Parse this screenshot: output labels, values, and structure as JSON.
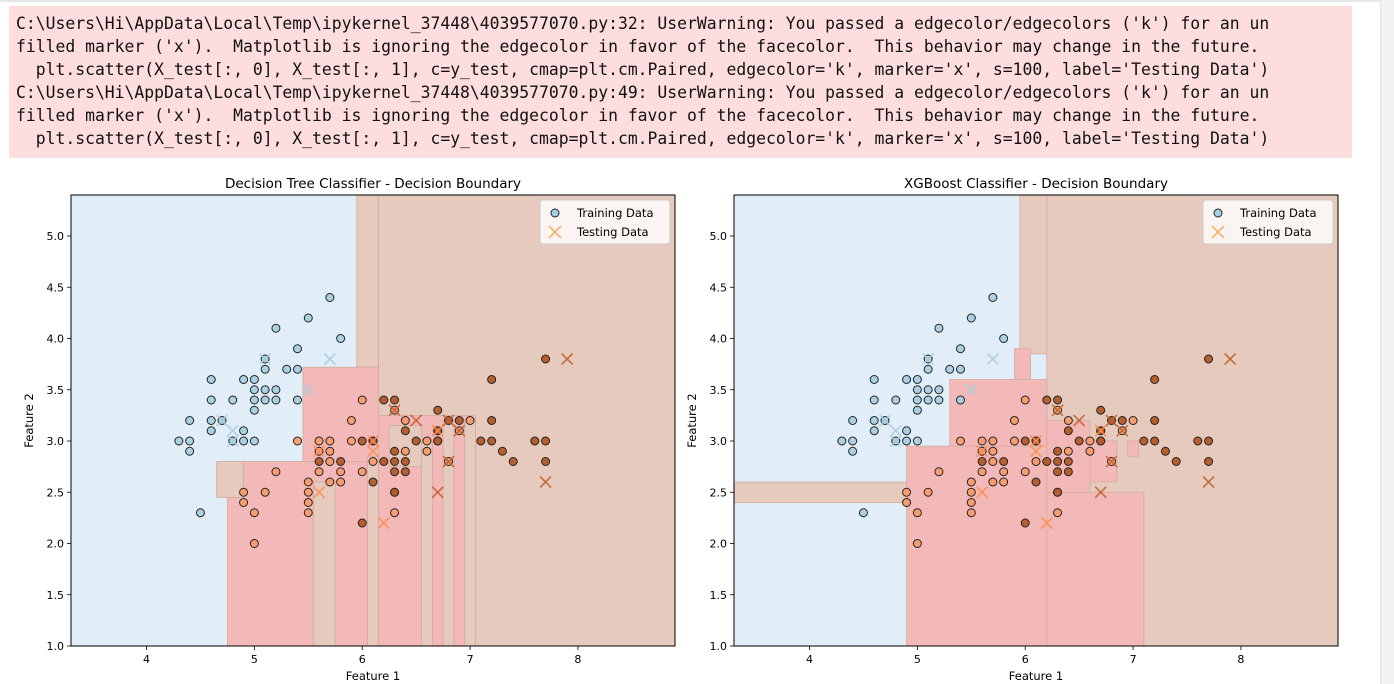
{
  "warnings": [
    "C:\\Users\\Hi\\AppData\\Local\\Temp\\ipykernel_37448\\4039577070.py:32: UserWarning: You passed a edgecolor/edgecolors ('k') for an un",
    "filled marker ('x').  Matplotlib is ignoring the edgecolor in favor of the facecolor.  This behavior may change in the future.",
    "  plt.scatter(X_test[:, 0], X_test[:, 1], c=y_test, cmap=plt.cm.Paired, edgecolor='k', marker='x', s=100, label='Testing Data')",
    "C:\\Users\\Hi\\AppData\\Local\\Temp\\ipykernel_37448\\4039577070.py:49: UserWarning: You passed a edgecolor/edgecolors ('k') for an un",
    "filled marker ('x').  Matplotlib is ignoring the edgecolor in favor of the facecolor.  This behavior may change in the future.",
    "  plt.scatter(X_test[:, 0], X_test[:, 1], c=y_test, cmap=plt.cm.Paired, edgecolor='k', marker='x', s=100, label='Testing Data')"
  ],
  "colors": {
    "warning_bg": "#fddddd",
    "region_class0": "#e2eef7",
    "region_class1": "#f3b8b8",
    "region_class2": "#e5cabd",
    "point_class0": "#a6cee3",
    "point_class1": "#fb9a6c",
    "point_class2": "#b15928",
    "test_class0": "#a6cee3",
    "test_class1": "#fb8c4c",
    "test_class2": "#c0602e"
  },
  "chart_data": [
    {
      "type": "scatter",
      "title": "Decision Tree Classifier - Decision Boundary",
      "xlabel": "Feature 1",
      "ylabel": "Feature 2",
      "xlim": [
        3.3,
        8.9
      ],
      "ylim": [
        1.0,
        5.4
      ],
      "xticks": [
        4,
        5,
        6,
        7,
        8
      ],
      "yticks": [
        1.0,
        1.5,
        2.0,
        2.5,
        3.0,
        3.5,
        4.0,
        4.5,
        5.0
      ],
      "legend": {
        "position": "top-right",
        "entries": [
          "Training Data",
          "Testing Data"
        ]
      },
      "regions": [
        {
          "class": 0,
          "x": [
            3.3,
            8.9
          ],
          "y": [
            1.0,
            5.4
          ]
        },
        {
          "class": 2,
          "x": [
            6.15,
            8.9
          ],
          "y": [
            1.0,
            5.4
          ]
        },
        {
          "class": 2,
          "x": [
            5.95,
            6.15
          ],
          "y": [
            3.72,
            5.4
          ]
        },
        {
          "class": 1,
          "x": [
            4.75,
            6.15
          ],
          "y": [
            1.0,
            2.8
          ]
        },
        {
          "class": 2,
          "x": [
            4.65,
            4.9
          ],
          "y": [
            2.45,
            2.8
          ]
        },
        {
          "class": 1,
          "x": [
            5.45,
            6.15
          ],
          "y": [
            2.8,
            3.72
          ]
        },
        {
          "class": 1,
          "x": [
            6.15,
            7.05
          ],
          "y": [
            1.0,
            3.25
          ]
        },
        {
          "class": 2,
          "x": [
            5.55,
            5.75
          ],
          "y": [
            1.0,
            2.6
          ]
        },
        {
          "class": 2,
          "x": [
            6.05,
            6.15
          ],
          "y": [
            1.0,
            2.85
          ]
        },
        {
          "class": 2,
          "x": [
            6.55,
            6.65
          ],
          "y": [
            1.0,
            3.0
          ]
        },
        {
          "class": 2,
          "x": [
            6.75,
            6.85
          ],
          "y": [
            1.0,
            3.2
          ]
        },
        {
          "class": 2,
          "x": [
            6.95,
            7.05
          ],
          "y": [
            1.0,
            3.2
          ]
        },
        {
          "class": 2,
          "x": [
            6.25,
            6.55
          ],
          "y": [
            2.75,
            3.15
          ]
        }
      ],
      "train": [
        {
          "x": 4.3,
          "y": 3.0,
          "c": 0
        },
        {
          "x": 4.4,
          "y": 3.0,
          "c": 0
        },
        {
          "x": 4.4,
          "y": 2.9,
          "c": 0
        },
        {
          "x": 4.4,
          "y": 3.2,
          "c": 0
        },
        {
          "x": 4.5,
          "y": 2.3,
          "c": 0
        },
        {
          "x": 4.6,
          "y": 3.1,
          "c": 0
        },
        {
          "x": 4.6,
          "y": 3.2,
          "c": 0
        },
        {
          "x": 4.6,
          "y": 3.4,
          "c": 0
        },
        {
          "x": 4.6,
          "y": 3.6,
          "c": 0
        },
        {
          "x": 4.7,
          "y": 3.2,
          "c": 0
        },
        {
          "x": 4.8,
          "y": 3.0,
          "c": 0
        },
        {
          "x": 4.8,
          "y": 3.4,
          "c": 0
        },
        {
          "x": 4.9,
          "y": 3.0,
          "c": 0
        },
        {
          "x": 4.9,
          "y": 3.1,
          "c": 0
        },
        {
          "x": 4.9,
          "y": 3.6,
          "c": 0
        },
        {
          "x": 5.0,
          "y": 3.0,
          "c": 0
        },
        {
          "x": 5.0,
          "y": 3.3,
          "c": 0
        },
        {
          "x": 5.0,
          "y": 3.4,
          "c": 0
        },
        {
          "x": 5.0,
          "y": 3.5,
          "c": 0
        },
        {
          "x": 5.0,
          "y": 3.6,
          "c": 0
        },
        {
          "x": 5.1,
          "y": 3.4,
          "c": 0
        },
        {
          "x": 5.1,
          "y": 3.5,
          "c": 0
        },
        {
          "x": 5.1,
          "y": 3.7,
          "c": 0
        },
        {
          "x": 5.1,
          "y": 3.8,
          "c": 0
        },
        {
          "x": 5.2,
          "y": 3.4,
          "c": 0
        },
        {
          "x": 5.2,
          "y": 3.5,
          "c": 0
        },
        {
          "x": 5.2,
          "y": 4.1,
          "c": 0
        },
        {
          "x": 5.3,
          "y": 3.7,
          "c": 0
        },
        {
          "x": 5.4,
          "y": 3.4,
          "c": 0
        },
        {
          "x": 5.4,
          "y": 3.7,
          "c": 0
        },
        {
          "x": 5.4,
          "y": 3.9,
          "c": 0
        },
        {
          "x": 5.5,
          "y": 4.2,
          "c": 0
        },
        {
          "x": 5.7,
          "y": 4.4,
          "c": 0
        },
        {
          "x": 5.8,
          "y": 4.0,
          "c": 0
        },
        {
          "x": 4.9,
          "y": 2.4,
          "c": 1
        },
        {
          "x": 4.9,
          "y": 2.5,
          "c": 1
        },
        {
          "x": 5.0,
          "y": 2.0,
          "c": 1
        },
        {
          "x": 5.0,
          "y": 2.3,
          "c": 1
        },
        {
          "x": 5.1,
          "y": 2.5,
          "c": 1
        },
        {
          "x": 5.2,
          "y": 2.7,
          "c": 1
        },
        {
          "x": 5.4,
          "y": 3.0,
          "c": 1
        },
        {
          "x": 5.5,
          "y": 2.3,
          "c": 1
        },
        {
          "x": 5.5,
          "y": 2.4,
          "c": 1
        },
        {
          "x": 5.5,
          "y": 2.5,
          "c": 1
        },
        {
          "x": 5.5,
          "y": 2.6,
          "c": 1
        },
        {
          "x": 5.6,
          "y": 2.7,
          "c": 1
        },
        {
          "x": 5.6,
          "y": 2.9,
          "c": 1
        },
        {
          "x": 5.6,
          "y": 3.0,
          "c": 1
        },
        {
          "x": 5.7,
          "y": 2.6,
          "c": 1
        },
        {
          "x": 5.7,
          "y": 2.8,
          "c": 1
        },
        {
          "x": 5.7,
          "y": 2.9,
          "c": 1
        },
        {
          "x": 5.7,
          "y": 3.0,
          "c": 1
        },
        {
          "x": 5.8,
          "y": 2.6,
          "c": 1
        },
        {
          "x": 5.8,
          "y": 2.7,
          "c": 1
        },
        {
          "x": 5.9,
          "y": 3.0,
          "c": 1
        },
        {
          "x": 5.9,
          "y": 3.2,
          "c": 1
        },
        {
          "x": 6.0,
          "y": 2.7,
          "c": 1
        },
        {
          "x": 6.0,
          "y": 3.4,
          "c": 1
        },
        {
          "x": 6.1,
          "y": 2.8,
          "c": 1
        },
        {
          "x": 6.1,
          "y": 3.0,
          "c": 1
        },
        {
          "x": 6.3,
          "y": 2.3,
          "c": 1
        },
        {
          "x": 6.3,
          "y": 2.5,
          "c": 1
        },
        {
          "x": 6.3,
          "y": 3.3,
          "c": 1
        },
        {
          "x": 6.4,
          "y": 2.9,
          "c": 1
        },
        {
          "x": 6.4,
          "y": 3.2,
          "c": 1
        },
        {
          "x": 6.6,
          "y": 2.9,
          "c": 1
        },
        {
          "x": 6.6,
          "y": 3.0,
          "c": 1
        },
        {
          "x": 6.7,
          "y": 3.0,
          "c": 1
        },
        {
          "x": 6.7,
          "y": 3.1,
          "c": 1
        },
        {
          "x": 6.8,
          "y": 2.8,
          "c": 1
        },
        {
          "x": 6.9,
          "y": 3.1,
          "c": 1
        },
        {
          "x": 7.0,
          "y": 3.2,
          "c": 1
        },
        {
          "x": 5.6,
          "y": 2.8,
          "c": 2
        },
        {
          "x": 5.8,
          "y": 2.8,
          "c": 2
        },
        {
          "x": 6.0,
          "y": 2.2,
          "c": 2
        },
        {
          "x": 6.0,
          "y": 3.0,
          "c": 2
        },
        {
          "x": 6.1,
          "y": 2.6,
          "c": 2
        },
        {
          "x": 6.1,
          "y": 3.0,
          "c": 2
        },
        {
          "x": 6.2,
          "y": 2.8,
          "c": 2
        },
        {
          "x": 6.2,
          "y": 3.4,
          "c": 2
        },
        {
          "x": 6.3,
          "y": 2.5,
          "c": 2
        },
        {
          "x": 6.3,
          "y": 2.7,
          "c": 2
        },
        {
          "x": 6.3,
          "y": 2.8,
          "c": 2
        },
        {
          "x": 6.3,
          "y": 2.9,
          "c": 2
        },
        {
          "x": 6.3,
          "y": 3.4,
          "c": 2
        },
        {
          "x": 6.4,
          "y": 2.7,
          "c": 2
        },
        {
          "x": 6.4,
          "y": 2.8,
          "c": 2
        },
        {
          "x": 6.4,
          "y": 3.1,
          "c": 2
        },
        {
          "x": 6.5,
          "y": 3.0,
          "c": 2
        },
        {
          "x": 6.7,
          "y": 3.0,
          "c": 2
        },
        {
          "x": 6.7,
          "y": 3.1,
          "c": 2
        },
        {
          "x": 6.7,
          "y": 3.3,
          "c": 2
        },
        {
          "x": 6.8,
          "y": 3.2,
          "c": 2
        },
        {
          "x": 6.9,
          "y": 3.2,
          "c": 2
        },
        {
          "x": 7.1,
          "y": 3.0,
          "c": 2
        },
        {
          "x": 7.2,
          "y": 3.0,
          "c": 2
        },
        {
          "x": 7.2,
          "y": 3.2,
          "c": 2
        },
        {
          "x": 7.2,
          "y": 3.6,
          "c": 2
        },
        {
          "x": 7.3,
          "y": 2.9,
          "c": 2
        },
        {
          "x": 7.4,
          "y": 2.8,
          "c": 2
        },
        {
          "x": 7.6,
          "y": 3.0,
          "c": 2
        },
        {
          "x": 7.7,
          "y": 2.8,
          "c": 2
        },
        {
          "x": 7.7,
          "y": 3.0,
          "c": 2
        },
        {
          "x": 7.7,
          "y": 3.8,
          "c": 2
        }
      ],
      "test": [
        {
          "x": 4.7,
          "y": 3.2,
          "c": 0
        },
        {
          "x": 4.8,
          "y": 3.0,
          "c": 0
        },
        {
          "x": 4.8,
          "y": 3.1,
          "c": 0
        },
        {
          "x": 5.1,
          "y": 3.8,
          "c": 0
        },
        {
          "x": 5.5,
          "y": 3.5,
          "c": 0
        },
        {
          "x": 5.7,
          "y": 3.8,
          "c": 0
        },
        {
          "x": 5.6,
          "y": 2.5,
          "c": 1
        },
        {
          "x": 5.6,
          "y": 2.9,
          "c": 1
        },
        {
          "x": 6.1,
          "y": 2.9,
          "c": 1
        },
        {
          "x": 6.2,
          "y": 2.2,
          "c": 1
        },
        {
          "x": 6.1,
          "y": 3.0,
          "c": 1
        },
        {
          "x": 6.7,
          "y": 3.1,
          "c": 1
        },
        {
          "x": 6.3,
          "y": 3.3,
          "c": 2
        },
        {
          "x": 6.5,
          "y": 3.2,
          "c": 2
        },
        {
          "x": 6.7,
          "y": 2.5,
          "c": 2
        },
        {
          "x": 6.8,
          "y": 2.8,
          "c": 2
        },
        {
          "x": 6.8,
          "y": 3.2,
          "c": 2
        },
        {
          "x": 6.9,
          "y": 3.1,
          "c": 2
        },
        {
          "x": 7.7,
          "y": 2.6,
          "c": 2
        },
        {
          "x": 7.9,
          "y": 3.8,
          "c": 2
        }
      ]
    },
    {
      "type": "scatter",
      "title": "XGBoost Classifier - Decision Boundary",
      "xlabel": "Feature 1",
      "ylabel": "Feature 2",
      "xlim": [
        3.3,
        8.9
      ],
      "ylim": [
        1.0,
        5.4
      ],
      "xticks": [
        4,
        5,
        6,
        7,
        8
      ],
      "yticks": [
        1.0,
        1.5,
        2.0,
        2.5,
        3.0,
        3.5,
        4.0,
        4.5,
        5.0
      ],
      "legend": {
        "position": "top-right",
        "entries": [
          "Training Data",
          "Testing Data"
        ]
      },
      "regions": [
        {
          "class": 0,
          "x": [
            3.3,
            8.9
          ],
          "y": [
            1.0,
            5.4
          ]
        },
        {
          "class": 2,
          "x": [
            6.2,
            8.9
          ],
          "y": [
            1.0,
            5.4
          ]
        },
        {
          "class": 2,
          "x": [
            5.95,
            6.2
          ],
          "y": [
            3.85,
            5.4
          ]
        },
        {
          "class": 2,
          "x": [
            3.3,
            4.95
          ],
          "y": [
            2.4,
            2.6
          ]
        },
        {
          "class": 1,
          "x": [
            4.9,
            6.2
          ],
          "y": [
            1.0,
            2.95
          ]
        },
        {
          "class": 1,
          "x": [
            5.3,
            6.2
          ],
          "y": [
            2.95,
            3.6
          ]
        },
        {
          "class": 1,
          "x": [
            5.9,
            6.05
          ],
          "y": [
            3.6,
            3.9
          ]
        },
        {
          "class": 1,
          "x": [
            6.2,
            7.1
          ],
          "y": [
            1.0,
            2.5
          ]
        },
        {
          "class": 1,
          "x": [
            6.2,
            6.6
          ],
          "y": [
            2.5,
            3.2
          ]
        },
        {
          "class": 1,
          "x": [
            6.6,
            6.85
          ],
          "y": [
            2.6,
            3.0
          ]
        },
        {
          "class": 1,
          "x": [
            6.95,
            7.05
          ],
          "y": [
            2.85,
            3.0
          ]
        }
      ],
      "train_same_as_first": true,
      "test_same_as_first": true
    }
  ]
}
